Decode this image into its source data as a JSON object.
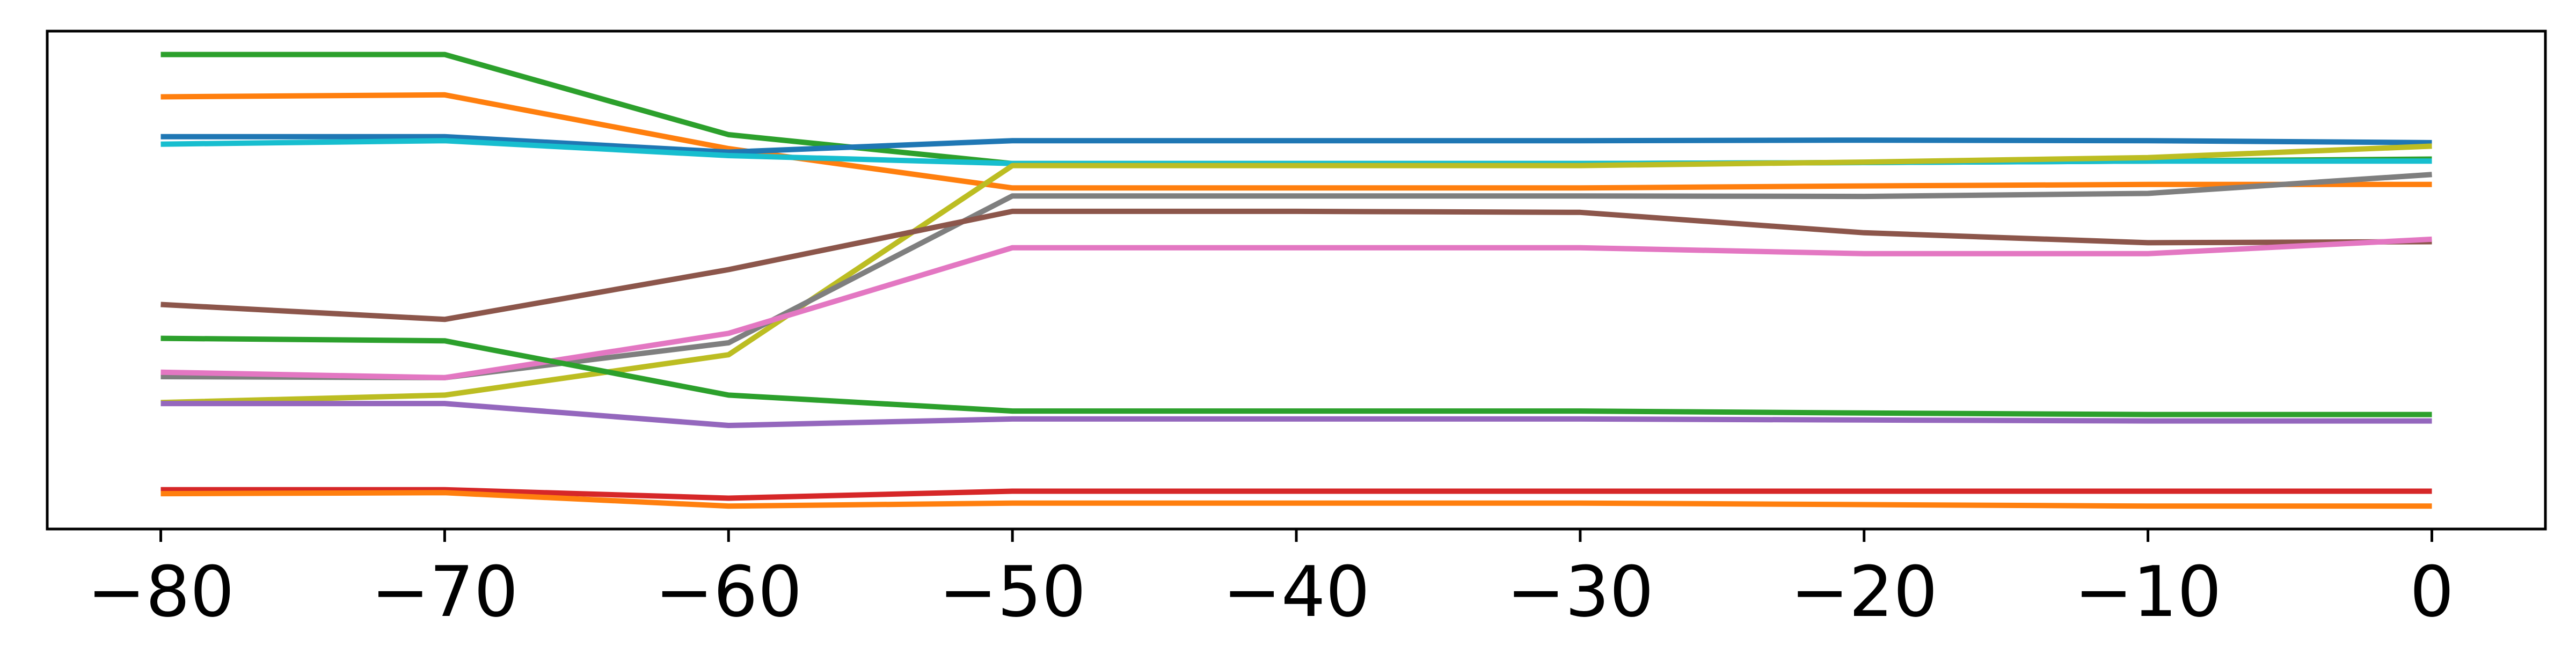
{
  "chart_data": {
    "type": "line",
    "x": [
      -80,
      -70,
      -60,
      -50,
      -40,
      -30,
      -20,
      -10,
      0
    ],
    "xlim": [
      -84,
      4
    ],
    "ylim": [
      0,
      100
    ],
    "grid": false,
    "legend": "none",
    "x_ticks": [
      -80,
      -70,
      -60,
      -50,
      -40,
      -30,
      -20,
      -10,
      0
    ],
    "x_tick_labels": [
      "−80",
      "−70",
      "−60",
      "−50",
      "−40",
      "−30",
      "−20",
      "−10",
      "0"
    ],
    "series": [
      {
        "color": "#2ca02c",
        "values": [
          95.3,
          95.3,
          79.2,
          73.4,
          73.4,
          73.4,
          73.6,
          73.9,
          74.3
        ]
      },
      {
        "color": "#ff7f0e",
        "values": [
          86.8,
          87.2,
          76.4,
          68.5,
          68.5,
          68.5,
          68.9,
          69.2,
          69.2
        ]
      },
      {
        "color": "#1f77b4",
        "values": [
          78.8,
          78.8,
          75.7,
          78.0,
          78.0,
          78.0,
          78.1,
          78.0,
          77.6
        ]
      },
      {
        "color": "#17becf",
        "values": [
          77.3,
          78.0,
          75.0,
          73.4,
          73.4,
          73.4,
          73.6,
          73.9,
          73.9
        ]
      },
      {
        "color": "#bcbd22",
        "values": [
          25.4,
          26.9,
          35.0,
          73.0,
          73.0,
          73.0,
          73.7,
          74.6,
          76.9
        ]
      },
      {
        "color": "#7f7f7f",
        "values": [
          30.6,
          30.4,
          37.4,
          66.9,
          66.9,
          66.9,
          66.8,
          67.4,
          71.2
        ]
      },
      {
        "color": "#8c564b",
        "values": [
          45.1,
          42.1,
          52.1,
          63.8,
          63.8,
          63.6,
          59.5,
          57.5,
          57.7
        ]
      },
      {
        "color": "#e377c2",
        "values": [
          31.5,
          30.4,
          39.3,
          56.5,
          56.5,
          56.5,
          55.3,
          55.3,
          58.2
        ]
      },
      {
        "color": "#2ca02c",
        "values": [
          38.3,
          37.8,
          26.9,
          23.7,
          23.7,
          23.7,
          23.3,
          23.0,
          23.0
        ]
      },
      {
        "color": "#9467bd",
        "values": [
          25.2,
          25.2,
          20.8,
          22.1,
          22.1,
          22.1,
          21.9,
          21.7,
          21.7
        ]
      },
      {
        "color": "#d62728",
        "values": [
          7.9,
          7.9,
          6.2,
          7.6,
          7.6,
          7.6,
          7.6,
          7.6,
          7.6
        ]
      },
      {
        "color": "#ff7f0e",
        "values": [
          7.1,
          7.3,
          4.6,
          5.2,
          5.2,
          5.2,
          4.9,
          4.6,
          4.6
        ]
      }
    ]
  }
}
